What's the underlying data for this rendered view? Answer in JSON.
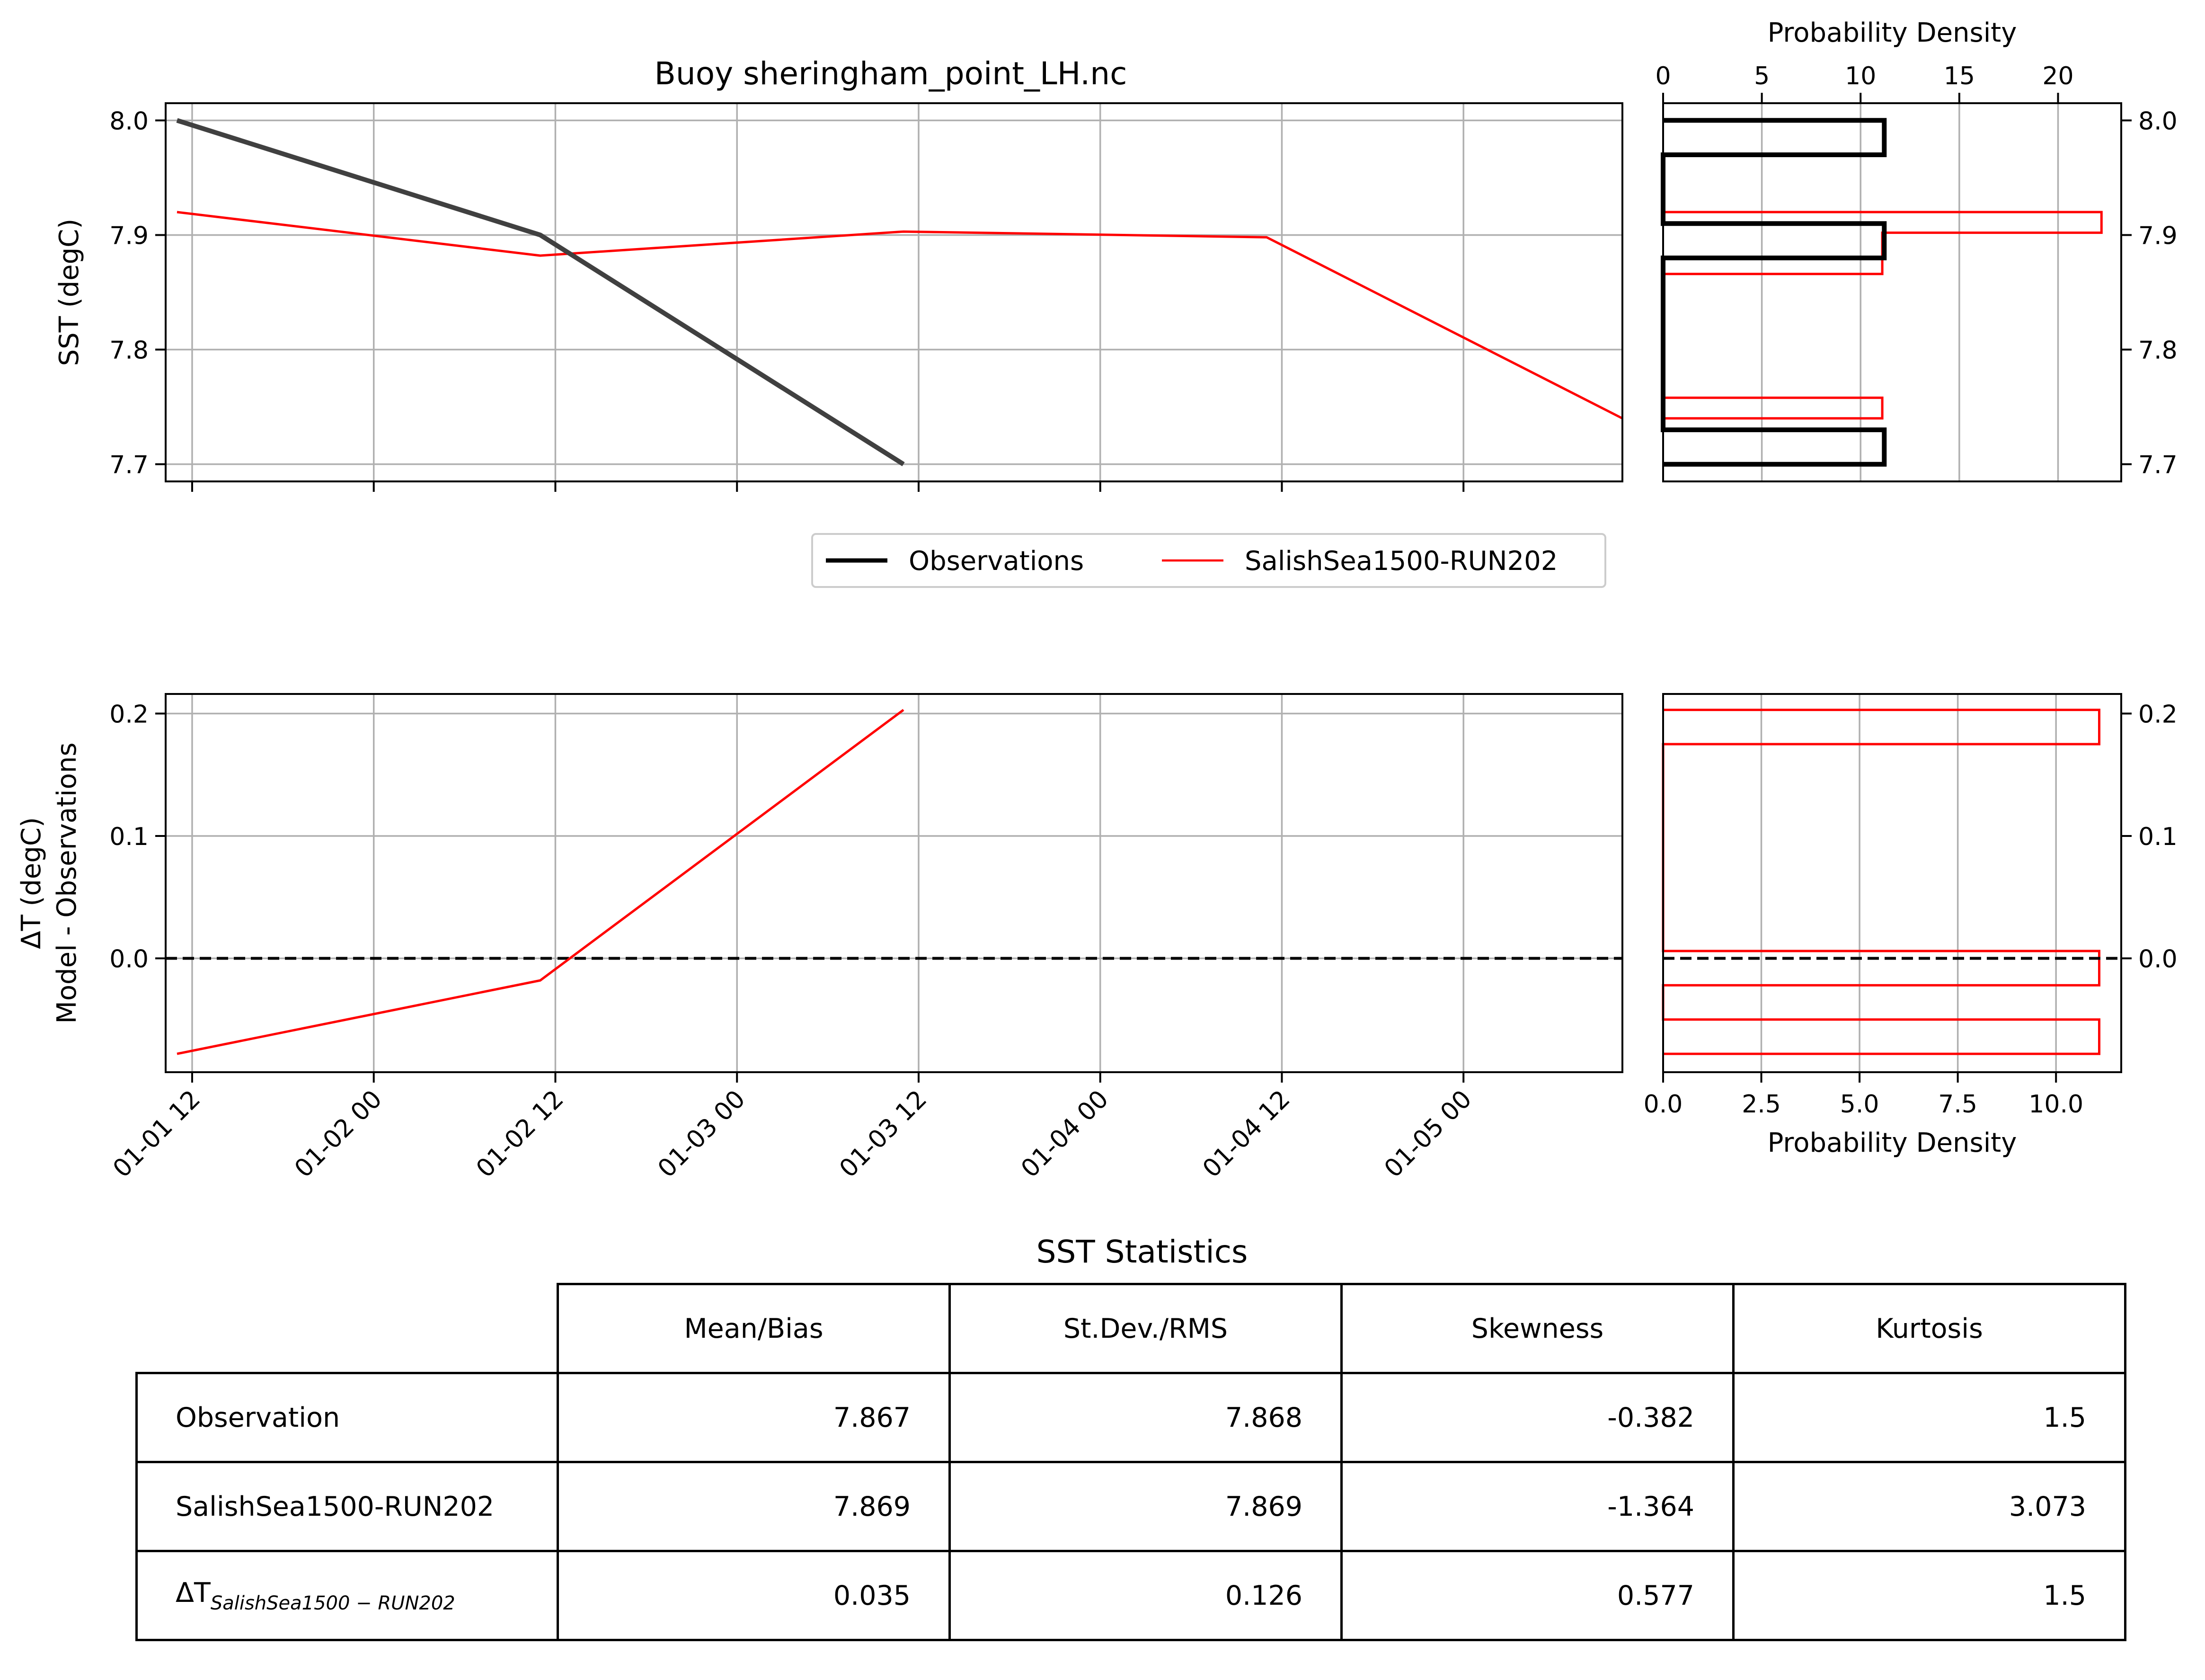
{
  "title": "Buoy sheringham_point_LH.nc",
  "chart_data": [
    {
      "type": "line",
      "title": "Buoy sheringham_point_LH.nc",
      "ylabel": "SST (degC)",
      "ylim": [
        7.685,
        8.015
      ],
      "yticks": [
        "7.7",
        "7.8",
        "7.9",
        "8.0"
      ],
      "xlim": [
        "2023-01-01 10:15",
        "2023-01-05 10:30"
      ],
      "series": [
        {
          "name": "Observations",
          "color": "#404040",
          "x": [
            "2023-01-01 11:00",
            "2023-01-02 11:00",
            "2023-01-03 11:00"
          ],
          "y": [
            8.0,
            7.9,
            7.7
          ]
        },
        {
          "name": "SalishSea1500-RUN202",
          "color": "#ff0000",
          "x": [
            "2023-01-01 11:00",
            "2023-01-02 11:00",
            "2023-01-03 11:00",
            "2023-01-04 11:00",
            "2023-01-05 10:30"
          ],
          "y": [
            7.92,
            7.882,
            7.903,
            7.898,
            7.74
          ]
        }
      ],
      "grid": true
    },
    {
      "type": "line",
      "ylabel_lines": [
        "ΔT (degC)",
        "Model - Observations"
      ],
      "ylim": [
        -0.093,
        0.216
      ],
      "yticks": [
        "0.0",
        "0.1",
        "0.2"
      ],
      "xticks": [
        "01-01 12",
        "01-02 00",
        "01-02 12",
        "01-03 00",
        "01-03 12",
        "01-04 00",
        "01-04 12",
        "01-05 00"
      ],
      "series": [
        {
          "name": "SalishSea1500-RUN202",
          "color": "#ff0000",
          "x": [
            "2023-01-01 11:00",
            "2023-01-02 11:00",
            "2023-01-03 11:00"
          ],
          "y": [
            -0.078,
            -0.018,
            0.203
          ]
        }
      ],
      "reference_line": {
        "y": 0.0,
        "style": "dashed",
        "color": "#000000"
      },
      "grid": true
    },
    {
      "type": "bar",
      "orientation": "horizontal",
      "xlabel": "Probability Density",
      "xlabel_position": "top",
      "xticks": [
        "0",
        "5",
        "10",
        "15",
        "20"
      ],
      "xlim": [
        0,
        23.2
      ],
      "ylim": [
        7.685,
        8.015
      ],
      "series": [
        {
          "name": "Observations",
          "color": "#000000",
          "bins": [
            [
              7.7,
              7.73,
              11.2
            ],
            [
              7.73,
              7.76,
              0
            ],
            [
              7.76,
              7.79,
              0
            ],
            [
              7.79,
              7.82,
              0
            ],
            [
              7.82,
              7.85,
              0
            ],
            [
              7.85,
              7.88,
              0
            ],
            [
              7.88,
              7.91,
              11.2
            ],
            [
              7.91,
              7.94,
              0
            ],
            [
              7.94,
              7.97,
              0
            ],
            [
              7.97,
              8.0,
              11.2
            ]
          ]
        },
        {
          "name": "SalishSea1500-RUN202",
          "color": "#ff0000",
          "bins": [
            [
              7.74,
              7.758,
              11.1
            ],
            [
              7.758,
              7.776,
              0
            ],
            [
              7.776,
              7.794,
              0
            ],
            [
              7.794,
              7.812,
              0
            ],
            [
              7.812,
              7.83,
              0
            ],
            [
              7.83,
              7.848,
              0
            ],
            [
              7.848,
              7.866,
              0
            ],
            [
              7.866,
              7.884,
              11.1
            ],
            [
              7.884,
              7.902,
              11.1
            ],
            [
              7.902,
              7.92,
              22.2
            ]
          ]
        }
      ]
    },
    {
      "type": "bar",
      "orientation": "horizontal",
      "xlabel": "Probability Density",
      "xticks": [
        "0.0",
        "2.5",
        "5.0",
        "7.5",
        "10.0"
      ],
      "xlim": [
        0,
        11.66
      ],
      "ylim": [
        -0.093,
        0.216
      ],
      "series": [
        {
          "name": "SalishSea1500-RUN202",
          "color": "#ff0000",
          "bins": [
            [
              -0.078,
              -0.05,
              11.1
            ],
            [
              -0.05,
              -0.022,
              0
            ],
            [
              -0.022,
              0.006,
              11.1
            ],
            [
              0.006,
              0.034,
              0
            ],
            [
              0.034,
              0.062,
              0
            ],
            [
              0.062,
              0.091,
              0
            ],
            [
              0.091,
              0.119,
              0
            ],
            [
              0.119,
              0.147,
              0
            ],
            [
              0.147,
              0.175,
              0
            ],
            [
              0.175,
              0.203,
              11.1
            ]
          ]
        }
      ],
      "reference_line": {
        "y": 0.0,
        "style": "dashed",
        "color": "#000000"
      }
    }
  ],
  "legend": {
    "placement": "center",
    "entries": [
      {
        "label": "Observations",
        "color": "#000000"
      },
      {
        "label": "SalishSea1500-RUN202",
        "color": "#ff0000"
      }
    ]
  },
  "stats_table": {
    "title": "SST Statistics",
    "columns": [
      "Mean/Bias",
      "St.Dev./RMS",
      "Skewness",
      "Kurtosis"
    ],
    "rows": [
      {
        "label": "Observation",
        "values": [
          "7.867",
          "7.868",
          "-0.382",
          "1.5"
        ]
      },
      {
        "label": "SalishSea1500-RUN202",
        "values": [
          "7.869",
          "7.869",
          "-1.364",
          "3.073"
        ]
      },
      {
        "label_main": "ΔT",
        "label_sub": "SalishSea1500 − RUN202",
        "values": [
          "0.035",
          "0.126",
          "0.577",
          "1.5"
        ]
      }
    ]
  }
}
